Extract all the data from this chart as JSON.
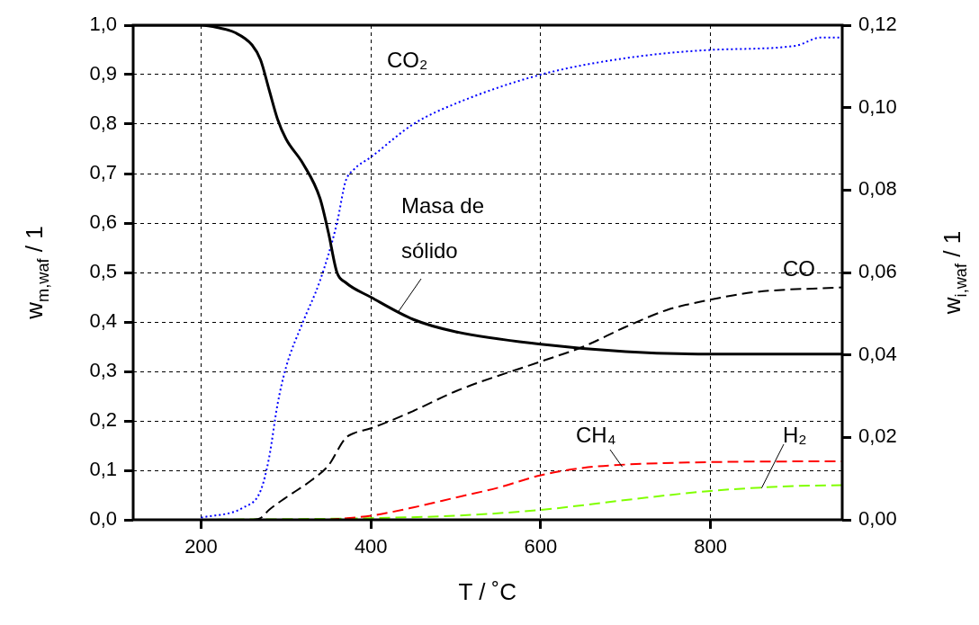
{
  "chart_data": {
    "type": "line",
    "xlabel": "T / ˚C",
    "ylabel": "w$_{m,waf}$ / 1",
    "y2label": "w$_{i,waf}$ / 1",
    "xlim": [
      120,
      955
    ],
    "xticks": [
      200,
      400,
      600,
      800
    ],
    "ylim": [
      0,
      1
    ],
    "yticks": [
      {
        "value": 0,
        "label": "0,0"
      },
      {
        "value": 0.1,
        "label": "0,1"
      },
      {
        "value": 0.2,
        "label": "0,2"
      },
      {
        "value": 0.3,
        "label": "0,3"
      },
      {
        "value": 0.4,
        "label": "0,4"
      },
      {
        "value": 0.5,
        "label": "0,5"
      },
      {
        "value": 0.6,
        "label": "0,6"
      },
      {
        "value": 0.7,
        "label": "0,7"
      },
      {
        "value": 0.8,
        "label": "0,8"
      },
      {
        "value": 0.9,
        "label": "0,9"
      },
      {
        "value": 1,
        "label": "1,0"
      }
    ],
    "y2lim": [
      0,
      0.12
    ],
    "y2ticks": [
      {
        "value": 0,
        "label": "0,00"
      },
      {
        "value": 0.02,
        "label": "0,02"
      },
      {
        "value": 0.04,
        "label": "0,04"
      },
      {
        "value": 0.06,
        "label": "0,06"
      },
      {
        "value": 0.08,
        "label": "0,08"
      },
      {
        "value": 0.1,
        "label": "0,10"
      },
      {
        "value": 0.12,
        "label": "0,12"
      }
    ],
    "grid": true,
    "legend": false,
    "marker": "none",
    "series": [
      {
        "color": "#000000",
        "line_style": "solid",
        "x": [
          120,
          200,
          220,
          240,
          260,
          270,
          280,
          290,
          300,
          320,
          340,
          350,
          360,
          370,
          400,
          450,
          500,
          600,
          700,
          800,
          955
        ],
        "values": [
          1,
          1,
          0.995,
          0.985,
          0.96,
          0.93,
          0.87,
          0.81,
          0.77,
          0.72,
          0.65,
          0.58,
          0.5,
          0.48,
          0.45,
          0.405,
          0.38,
          0.355,
          0.34,
          0.335,
          0.335
        ]
      },
      {
        "color": "#0000ff",
        "line_style": "dotted",
        "axis": "y2",
        "x": [
          200,
          250,
          270,
          280,
          290,
          300,
          320,
          340,
          360,
          370,
          380,
          400,
          450,
          500,
          600,
          700,
          800,
          900,
          930,
          955
        ],
        "values": [
          0.0005,
          0.003,
          0.007,
          0.015,
          0.028,
          0.037,
          0.048,
          0.058,
          0.072,
          0.082,
          0.085,
          0.088,
          0.096,
          0.101,
          0.108,
          0.112,
          0.114,
          0.115,
          0.117,
          0.117
        ]
      },
      {
        "color": "#000000",
        "line_style": "dashed",
        "axis": "y2",
        "x": [
          260,
          270,
          280,
          300,
          330,
          350,
          370,
          380,
          400,
          450,
          500,
          600,
          650,
          700,
          750,
          800,
          850,
          955
        ],
        "values": [
          0,
          0.0004,
          0.0024,
          0.0054,
          0.0096,
          0.0132,
          0.0198,
          0.021,
          0.0222,
          0.0264,
          0.0312,
          0.0384,
          0.042,
          0.0468,
          0.051,
          0.0534,
          0.0552,
          0.0564
        ]
      },
      {
        "color": "#ff0000",
        "line_style": "dashed",
        "axis": "y2",
        "x": [
          350,
          400,
          450,
          500,
          550,
          600,
          650,
          700,
          800,
          955
        ],
        "values": [
          0,
          0.001,
          0.003,
          0.0054,
          0.0078,
          0.0108,
          0.0126,
          0.0134,
          0.014,
          0.0142
        ]
      },
      {
        "color": "#80ff00",
        "line_style": "dashed",
        "axis": "y2",
        "x": [
          200,
          400,
          500,
          600,
          700,
          800,
          900,
          955
        ],
        "values": [
          0,
          0.0004,
          0.001,
          0.0024,
          0.0048,
          0.007,
          0.0082,
          0.0084
        ]
      }
    ],
    "annotations": [
      "CO₂",
      {
        "text": "Masa de sólido",
        "x": 432,
        "y": 0.42
      },
      "CO",
      {
        "text": "CH₄",
        "x": 696,
        "y": 0.107
      },
      {
        "text": "H₂",
        "x": 860,
        "y": 0.064
      }
    ]
  }
}
